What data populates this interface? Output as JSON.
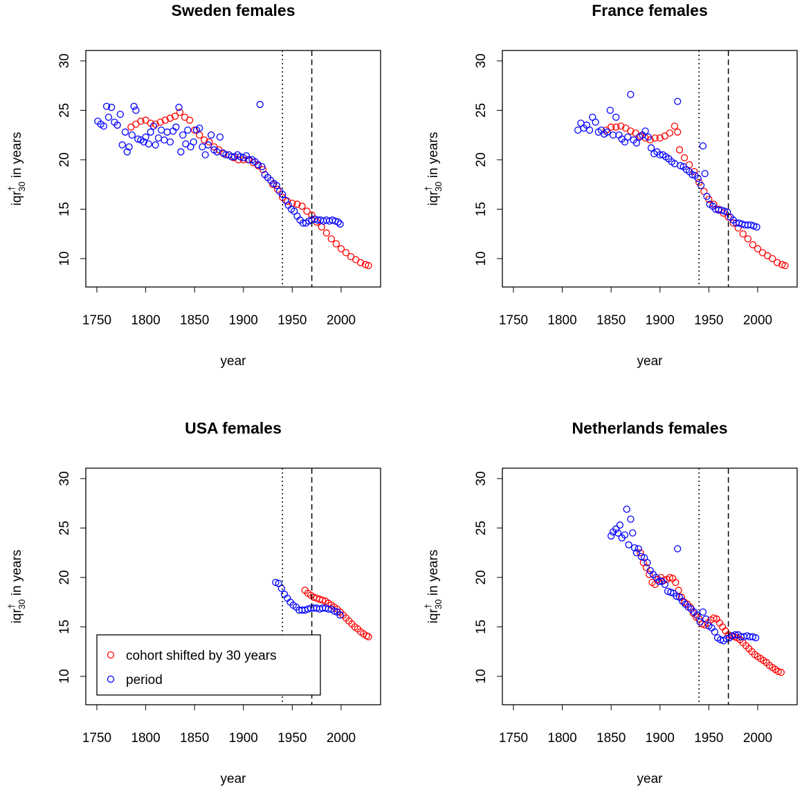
{
  "chart_data": [
    {
      "type": "scatter",
      "title": "Sweden females",
      "xlabel": "year",
      "ylabel": {
        "base": "iqr",
        "sup": "†",
        "sub": "30",
        "rest": " in years"
      },
      "xlim": [
        1738.7,
        2040.4
      ],
      "ylim": [
        7.13,
        31.05
      ],
      "xticks": [
        1750,
        1800,
        1850,
        1900,
        1950,
        2000
      ],
      "yticks": [
        10,
        15,
        20,
        25,
        30
      ],
      "vlines": [
        {
          "value": 1940,
          "style": "dotted"
        },
        {
          "value": 1970,
          "style": "dashed"
        }
      ],
      "series": [
        {
          "color": "#ff0000",
          "x": [
            1785,
            1790,
            1795,
            1800,
            1805,
            1810,
            1815,
            1820,
            1825,
            1830,
            1835,
            1840,
            1845,
            1850,
            1855,
            1860,
            1865,
            1870,
            1875,
            1880,
            1885,
            1890,
            1895,
            1900,
            1905,
            1910,
            1915,
            1920,
            1925,
            1930,
            1935,
            1940,
            1945,
            1950,
            1955,
            1960,
            1965,
            1970,
            1975,
            1980,
            1985,
            1990,
            1995,
            2000,
            2005,
            2010,
            2015,
            2020,
            2025,
            2028
          ],
          "values": [
            23.3,
            23.6,
            23.9,
            24.0,
            23.7,
            23.6,
            23.8,
            24.0,
            24.2,
            24.4,
            24.8,
            24.3,
            24.0,
            23.0,
            22.5,
            22.0,
            21.8,
            21.3,
            21.0,
            20.6,
            20.5,
            20.2,
            20.0,
            20.0,
            20.0,
            19.7,
            19.4,
            19.0,
            18.2,
            17.5,
            17.0,
            16.2,
            15.8,
            15.6,
            15.5,
            15.3,
            14.8,
            14.4,
            13.7,
            13.2,
            12.6,
            12.0,
            11.5,
            11.0,
            10.6,
            10.2,
            9.9,
            9.6,
            9.4,
            9.3
          ]
        },
        {
          "color": "#0000ff",
          "x": [
            1751,
            1754,
            1757,
            1760,
            1762,
            1765,
            1768,
            1771,
            1774,
            1776,
            1779,
            1781,
            1783,
            1786,
            1788,
            1790,
            1792,
            1795,
            1798,
            1800,
            1803,
            1805,
            1808,
            1810,
            1813,
            1816,
            1819,
            1822,
            1825,
            1828,
            1831,
            1834,
            1836,
            1838,
            1841,
            1843,
            1846,
            1849,
            1852,
            1855,
            1858,
            1861,
            1864,
            1867,
            1870,
            1873,
            1876,
            1879,
            1882,
            1885,
            1888,
            1891,
            1894,
            1897,
            1900,
            1903,
            1906,
            1909,
            1912,
            1915,
            1917,
            1919,
            1922,
            1925,
            1928,
            1931,
            1934,
            1937,
            1940,
            1943,
            1946,
            1949,
            1952,
            1955,
            1958,
            1961,
            1964,
            1967,
            1970,
            1973,
            1976,
            1979,
            1982,
            1985,
            1988,
            1991,
            1994,
            1997,
            1999
          ],
          "values": [
            23.9,
            23.6,
            23.4,
            25.4,
            24.3,
            25.3,
            23.8,
            23.5,
            24.6,
            21.5,
            22.8,
            20.8,
            21.3,
            22.5,
            25.4,
            25.0,
            22.1,
            22.0,
            21.8,
            22.3,
            21.6,
            22.8,
            23.4,
            21.5,
            22.2,
            23.0,
            22.0,
            22.8,
            21.8,
            22.9,
            23.3,
            25.3,
            20.8,
            22.5,
            21.6,
            23.0,
            21.3,
            21.8,
            23.0,
            23.2,
            21.3,
            20.5,
            21.5,
            22.5,
            21.0,
            20.8,
            22.3,
            20.7,
            20.5,
            20.5,
            20.3,
            20.3,
            20.5,
            20.3,
            20.2,
            20.4,
            20.0,
            20.0,
            19.8,
            19.5,
            25.6,
            19.3,
            18.5,
            18.2,
            17.9,
            17.6,
            17.4,
            16.8,
            16.5,
            15.9,
            15.4,
            15.0,
            14.8,
            14.3,
            13.9,
            13.6,
            13.6,
            13.8,
            13.9,
            14.0,
            13.9,
            13.9,
            13.8,
            13.9,
            13.8,
            13.9,
            13.8,
            13.7,
            13.5
          ]
        }
      ]
    },
    {
      "type": "scatter",
      "title": "France females",
      "xlabel": "year",
      "ylabel": {
        "base": "iqr",
        "sup": "†",
        "sub": "30",
        "rest": " in years"
      },
      "xlim": [
        1738.7,
        2040.4
      ],
      "ylim": [
        7.13,
        31.05
      ],
      "xticks": [
        1750,
        1800,
        1850,
        1900,
        1950,
        2000
      ],
      "yticks": [
        10,
        15,
        20,
        25,
        30
      ],
      "vlines": [
        {
          "value": 1940,
          "style": "dotted"
        },
        {
          "value": 1970,
          "style": "dashed"
        }
      ],
      "series": [
        {
          "color": "#ff0000",
          "x": [
            1845,
            1850,
            1855,
            1860,
            1865,
            1870,
            1875,
            1880,
            1885,
            1890,
            1895,
            1900,
            1905,
            1910,
            1915,
            1918,
            1920,
            1925,
            1930,
            1935,
            1940,
            1945,
            1950,
            1955,
            1960,
            1965,
            1970,
            1975,
            1980,
            1985,
            1990,
            1995,
            2000,
            2005,
            2010,
            2015,
            2020,
            2025,
            2028
          ],
          "values": [
            23.0,
            23.3,
            23.3,
            23.4,
            23.2,
            22.9,
            22.7,
            22.4,
            22.2,
            22.0,
            22.2,
            22.2,
            22.4,
            22.7,
            23.4,
            22.8,
            21.0,
            20.2,
            19.5,
            18.8,
            17.7,
            16.8,
            16.0,
            15.5,
            15.0,
            14.6,
            14.2,
            13.6,
            13.1,
            12.5,
            12.0,
            11.4,
            11.0,
            10.6,
            10.3,
            10.0,
            9.6,
            9.4,
            9.3
          ]
        },
        {
          "color": "#0000ff",
          "x": [
            1816,
            1819,
            1822,
            1825,
            1828,
            1831,
            1834,
            1837,
            1840,
            1843,
            1846,
            1849,
            1852,
            1855,
            1858,
            1861,
            1864,
            1867,
            1870,
            1873,
            1876,
            1879,
            1882,
            1885,
            1888,
            1891,
            1894,
            1897,
            1900,
            1903,
            1906,
            1909,
            1912,
            1915,
            1918,
            1921,
            1924,
            1927,
            1930,
            1933,
            1936,
            1939,
            1942,
            1944,
            1946,
            1948,
            1951,
            1954,
            1957,
            1960,
            1963,
            1966,
            1969,
            1972,
            1975,
            1978,
            1981,
            1984,
            1987,
            1990,
            1993,
            1996,
            1999
          ],
          "values": [
            23.0,
            23.7,
            23.2,
            23.5,
            23.0,
            24.3,
            23.8,
            22.8,
            23.0,
            22.6,
            22.8,
            25.0,
            22.5,
            24.3,
            22.5,
            22.1,
            21.8,
            22.3,
            26.6,
            22.0,
            21.7,
            22.3,
            22.5,
            22.9,
            22.3,
            21.2,
            20.6,
            20.8,
            20.5,
            20.5,
            20.3,
            20.1,
            19.8,
            19.6,
            25.9,
            19.4,
            19.3,
            19.0,
            18.8,
            18.5,
            18.4,
            18.1,
            17.4,
            21.4,
            18.6,
            16.3,
            15.5,
            15.3,
            15.0,
            14.9,
            14.9,
            14.8,
            14.7,
            14.2,
            13.9,
            13.6,
            13.6,
            13.5,
            13.4,
            13.4,
            13.4,
            13.3,
            13.2
          ]
        }
      ]
    },
    {
      "type": "scatter",
      "title": "USA females",
      "xlabel": "year",
      "ylabel": {
        "base": "iqr",
        "sup": "†",
        "sub": "30",
        "rest": " in years"
      },
      "xlim": [
        1738.7,
        2040.4
      ],
      "ylim": [
        7.13,
        31.05
      ],
      "xticks": [
        1750,
        1800,
        1850,
        1900,
        1950,
        2000
      ],
      "yticks": [
        10,
        15,
        20,
        25,
        30
      ],
      "vlines": [
        {
          "value": 1940,
          "style": "dotted"
        },
        {
          "value": 1970,
          "style": "dashed"
        }
      ],
      "legend": "bottomleft",
      "series": [
        {
          "name": "cohort shifted by 30 years",
          "color": "#ff0000",
          "x": [
            1963,
            1966,
            1969,
            1972,
            1975,
            1978,
            1981,
            1984,
            1987,
            1990,
            1993,
            1996,
            1999,
            2002,
            2005,
            2008,
            2011,
            2014,
            2017,
            2020,
            2023,
            2026,
            2028
          ],
          "values": [
            18.7,
            18.4,
            18.2,
            18.0,
            17.9,
            17.8,
            17.7,
            17.6,
            17.4,
            17.2,
            17.0,
            16.8,
            16.5,
            16.2,
            15.9,
            15.6,
            15.3,
            15.0,
            14.8,
            14.5,
            14.3,
            14.1,
            14.0
          ]
        },
        {
          "name": "period",
          "color": "#0000ff",
          "x": [
            1933,
            1936,
            1939,
            1942,
            1945,
            1948,
            1951,
            1954,
            1957,
            1960,
            1963,
            1966,
            1969,
            1972,
            1975,
            1978,
            1981,
            1984,
            1987,
            1990,
            1993,
            1996,
            1999
          ],
          "values": [
            19.5,
            19.4,
            18.9,
            18.3,
            17.9,
            17.5,
            17.2,
            17.0,
            16.7,
            16.7,
            16.7,
            16.8,
            16.9,
            16.9,
            16.9,
            16.8,
            16.9,
            16.9,
            16.8,
            16.8,
            16.6,
            16.5,
            16.2
          ]
        }
      ]
    },
    {
      "type": "scatter",
      "title": "Netherlands females",
      "xlabel": "year",
      "ylabel": {
        "base": "iqr",
        "sup": "†",
        "sub": "30",
        "rest": " in years"
      },
      "xlim": [
        1738.7,
        2040.4
      ],
      "ylim": [
        7.13,
        31.05
      ],
      "xticks": [
        1750,
        1800,
        1850,
        1900,
        1950,
        2000
      ],
      "yticks": [
        10,
        15,
        20,
        25,
        30
      ],
      "vlines": [
        {
          "value": 1940,
          "style": "dotted"
        },
        {
          "value": 1970,
          "style": "dashed"
        }
      ],
      "series": [
        {
          "color": "#ff0000",
          "x": [
            1880,
            1883,
            1886,
            1889,
            1892,
            1895,
            1898,
            1901,
            1904,
            1907,
            1910,
            1913,
            1916,
            1919,
            1922,
            1925,
            1928,
            1931,
            1934,
            1937,
            1940,
            1943,
            1946,
            1949,
            1952,
            1955,
            1958,
            1961,
            1964,
            1967,
            1970,
            1973,
            1976,
            1979,
            1982,
            1985,
            1988,
            1991,
            1994,
            1997,
            2000,
            2003,
            2006,
            2009,
            2012,
            2015,
            2018,
            2021,
            2024
          ],
          "values": [
            22.5,
            21.5,
            21.0,
            20.3,
            19.5,
            19.3,
            19.8,
            20.0,
            19.7,
            19.8,
            20.0,
            19.9,
            19.5,
            18.7,
            18.0,
            17.5,
            17.3,
            17.0,
            16.4,
            16.0,
            15.8,
            15.3,
            15.2,
            15.4,
            15.7,
            15.9,
            15.8,
            15.4,
            15.0,
            14.6,
            14.2,
            14.1,
            14.0,
            13.9,
            13.7,
            13.4,
            13.1,
            12.8,
            12.5,
            12.2,
            12.0,
            11.8,
            11.6,
            11.4,
            11.1,
            10.9,
            10.7,
            10.5,
            10.4
          ]
        },
        {
          "color": "#0000ff",
          "x": [
            1850,
            1852,
            1855,
            1857,
            1859,
            1861,
            1864,
            1866,
            1868,
            1870,
            1872,
            1874,
            1876,
            1878,
            1881,
            1884,
            1887,
            1890,
            1893,
            1896,
            1899,
            1902,
            1905,
            1908,
            1911,
            1914,
            1917,
            1918,
            1920,
            1923,
            1926,
            1929,
            1932,
            1935,
            1938,
            1941,
            1944,
            1947,
            1950,
            1953,
            1956,
            1959,
            1962,
            1965,
            1968,
            1971,
            1974,
            1977,
            1980,
            1983,
            1986,
            1989,
            1992,
            1995,
            1998
          ],
          "values": [
            24.2,
            24.6,
            24.9,
            24.5,
            25.3,
            24.0,
            24.3,
            26.9,
            23.3,
            25.9,
            24.5,
            23.0,
            22.5,
            22.9,
            22.1,
            22.0,
            21.5,
            20.7,
            20.3,
            20.0,
            19.6,
            19.6,
            19.3,
            18.6,
            18.5,
            18.4,
            18.1,
            22.9,
            18.0,
            17.6,
            17.3,
            17.0,
            16.8,
            16.5,
            16.2,
            15.5,
            16.5,
            15.8,
            15.1,
            14.9,
            14.5,
            13.9,
            13.7,
            13.6,
            13.8,
            13.9,
            14.1,
            14.2,
            14.2,
            14.0,
            14.0,
            14.1,
            14.0,
            14.0,
            13.9
          ]
        }
      ]
    }
  ]
}
